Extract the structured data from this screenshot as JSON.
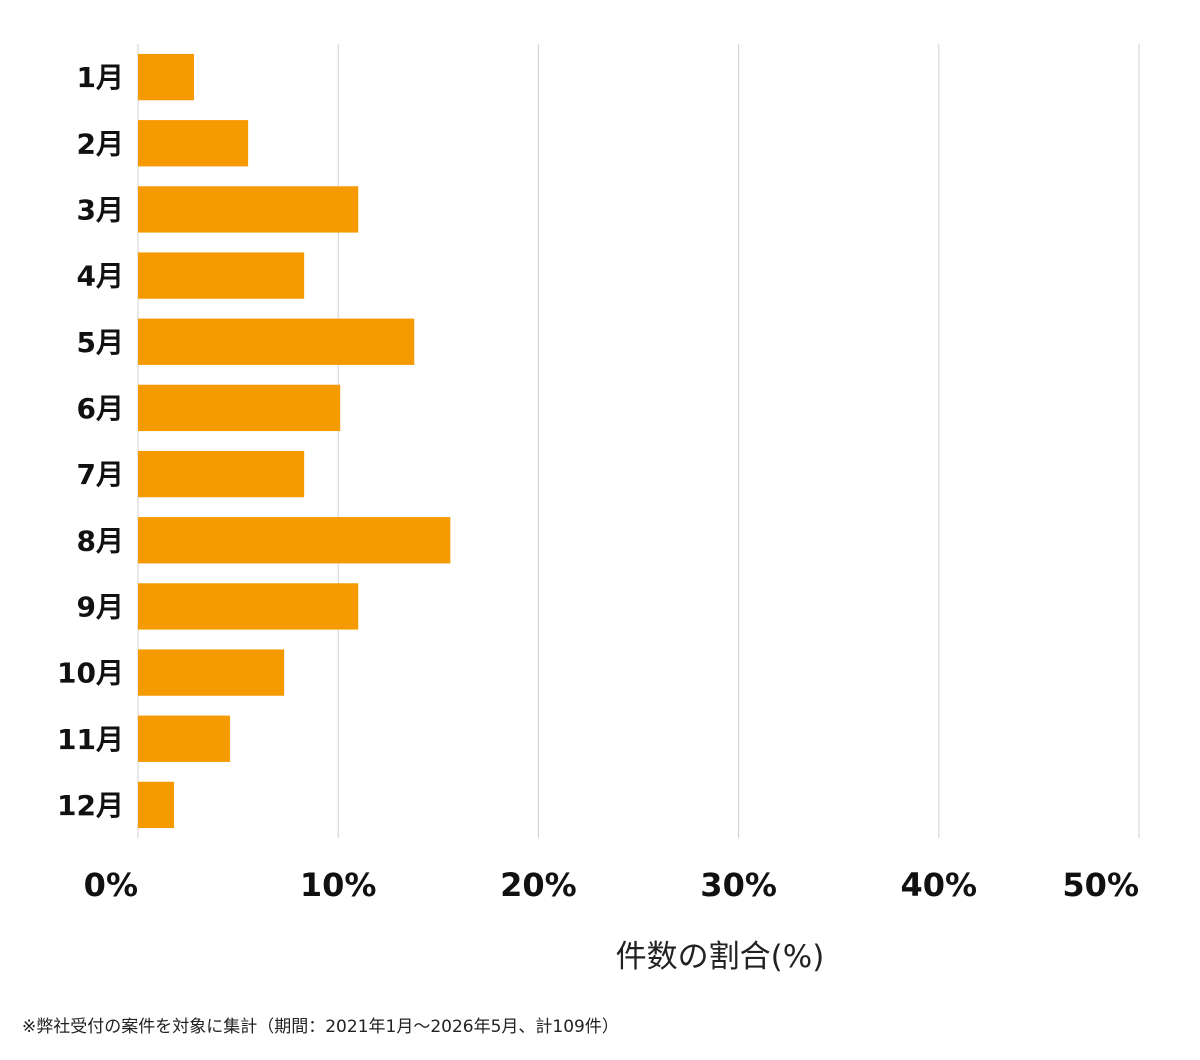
{
  "chart_data": {
    "type": "bar",
    "orientation": "horizontal",
    "categories": [
      "1月",
      "2月",
      "3月",
      "4月",
      "5月",
      "6月",
      "7月",
      "8月",
      "9月",
      "10月",
      "11月",
      "12月"
    ],
    "values": [
      2.8,
      5.5,
      11.0,
      8.3,
      13.8,
      10.1,
      8.3,
      15.6,
      11.0,
      7.3,
      4.6,
      1.8
    ],
    "xlim": [
      0,
      50
    ],
    "x_ticks": [
      0,
      10,
      20,
      30,
      40,
      50
    ],
    "x_tick_labels": [
      "0%",
      "10%",
      "20%",
      "30%",
      "40%",
      "50%"
    ],
    "xlabel": "件数の割合(%)",
    "title": "",
    "ylabel": "",
    "grid": "vertical",
    "bar_color": "#F59A00",
    "grid_color": "#d0d0d0",
    "legend": "none"
  },
  "footnote": "※弊社受付の案件を対象に集計（期間：2021年1月〜2026年5月、計109件）"
}
